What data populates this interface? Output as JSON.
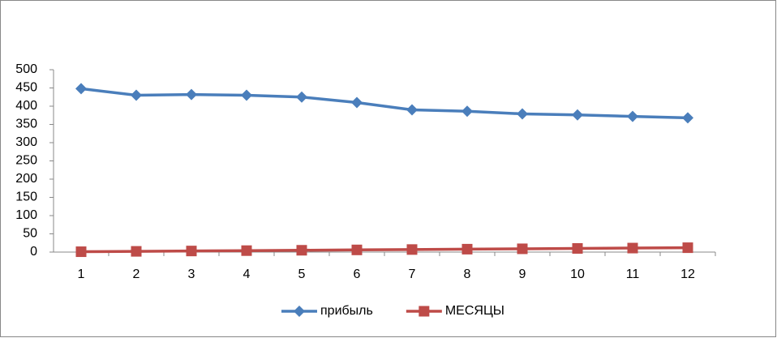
{
  "chart_data": {
    "type": "line",
    "categories": [
      1,
      2,
      3,
      4,
      5,
      6,
      7,
      8,
      9,
      10,
      11,
      12
    ],
    "series": [
      {
        "name": "прибыль",
        "color": "#4a7ebb",
        "marker": "diamond",
        "values": [
          448,
          430,
          432,
          430,
          425,
          410,
          390,
          386,
          379,
          376,
          372,
          368
        ]
      },
      {
        "name": "МЕСЯЦЫ",
        "color": "#be4b48",
        "marker": "square",
        "values": [
          1,
          2,
          3,
          4,
          5,
          6,
          7,
          8,
          9,
          10,
          11,
          12
        ]
      }
    ],
    "ylim": [
      0,
      500
    ],
    "yticks": [
      0,
      50,
      100,
      150,
      200,
      250,
      300,
      350,
      400,
      450,
      500
    ],
    "grid": false,
    "legend": "bottom"
  }
}
